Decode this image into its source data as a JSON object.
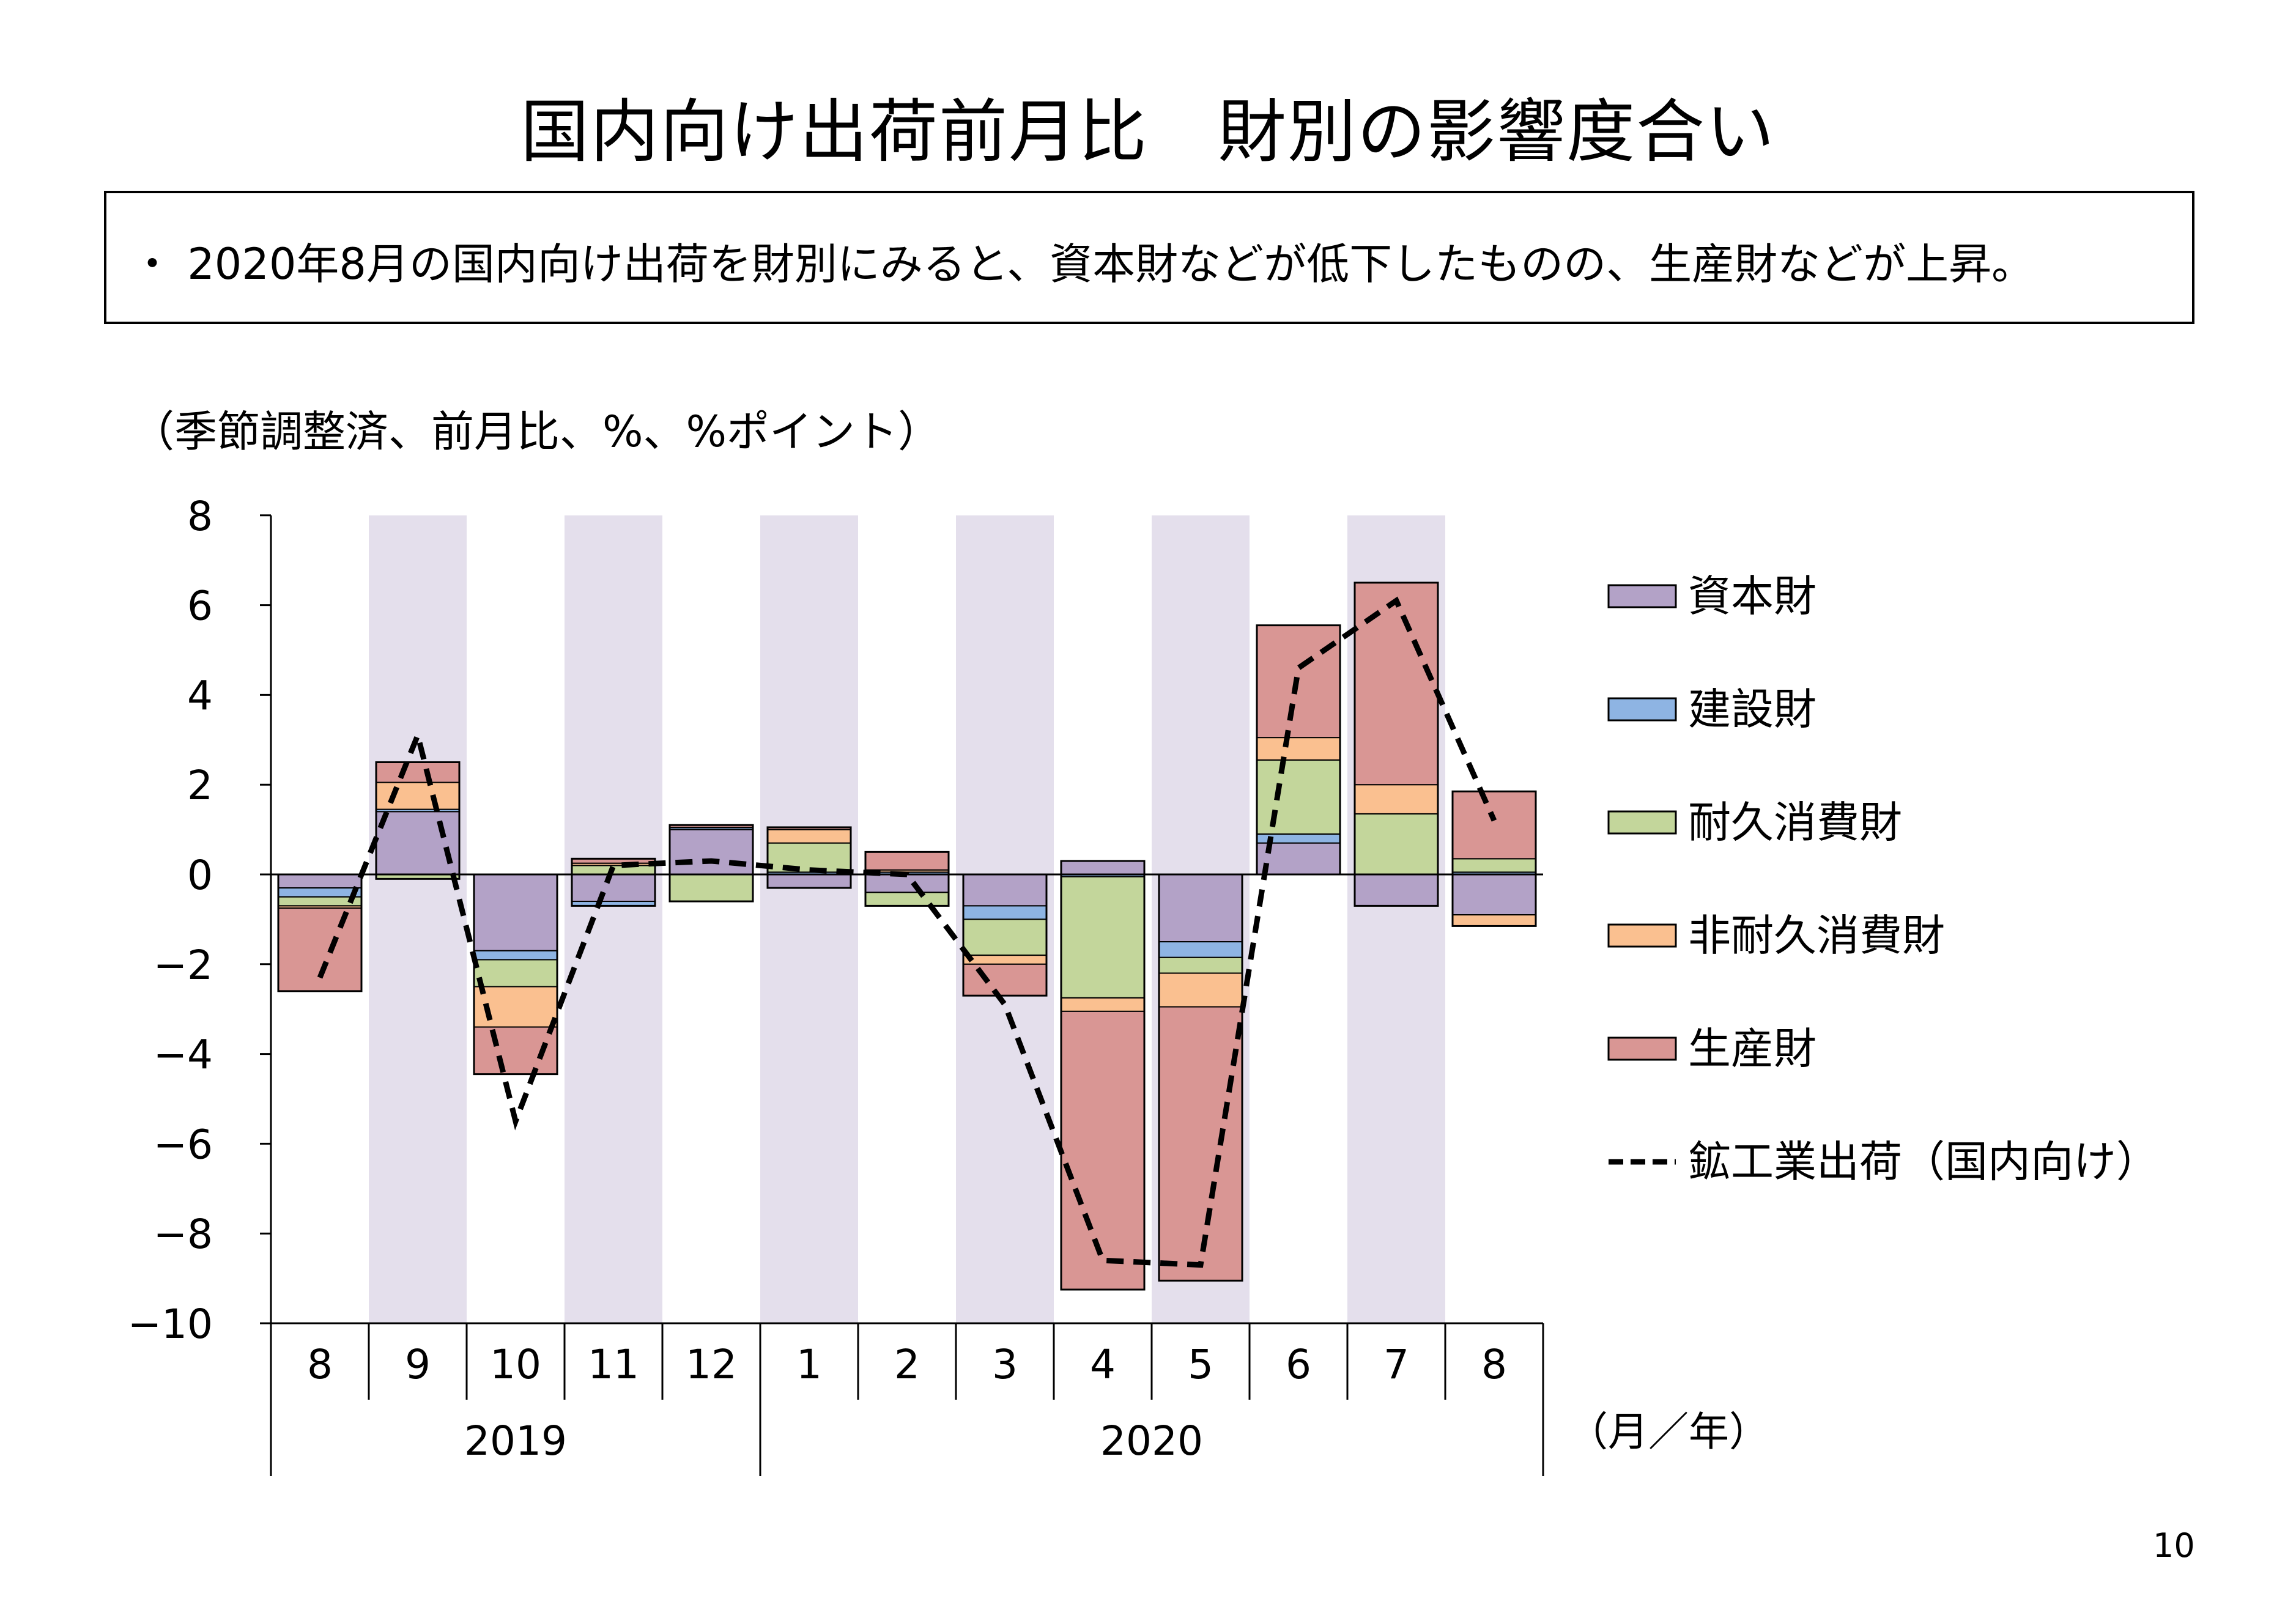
{
  "title": "国内向け出荷前月比　財別の影響度合い",
  "summary": "・ 2020年8月の国内向け出荷を財別にみると、資本財などが低下したものの、生産財などが上昇。",
  "unit_note": "（季節調整済、前月比、%、%ポイント）",
  "page_number": "10",
  "colors": {
    "capital": "#b3a2c7",
    "construction": "#8eb4e3",
    "durable": "#c3d69b",
    "nondurable": "#fac090",
    "production": "#d99694",
    "shading": "#e4dfec",
    "line": "#000000"
  },
  "chart_data": {
    "type": "bar",
    "stacked": true,
    "categories": [
      "8",
      "9",
      "10",
      "11",
      "12",
      "1",
      "2",
      "3",
      "4",
      "5",
      "6",
      "7",
      "8"
    ],
    "year_labels": [
      {
        "label": "2019",
        "from": 0,
        "to": 4
      },
      {
        "label": "2020",
        "from": 5,
        "to": 12
      }
    ],
    "x_unit_label": "（月／年）",
    "ylim": [
      -10,
      8
    ],
    "yticks": [
      "8",
      "6",
      "4",
      "2",
      "0",
      "−2",
      "−4",
      "−6",
      "−8",
      "−10"
    ],
    "ytick_values": [
      8,
      6,
      4,
      2,
      0,
      -2,
      -4,
      -6,
      -8,
      -10
    ],
    "shaded_categories": [
      1,
      3,
      5,
      7,
      9,
      11
    ],
    "series": [
      {
        "name": "資本財",
        "key": "capital",
        "values": [
          -0.3,
          1.4,
          -1.7,
          -0.6,
          1.0,
          -0.3,
          -0.4,
          -0.7,
          0.3,
          -1.5,
          0.7,
          -0.7,
          -0.9
        ]
      },
      {
        "name": "建設財",
        "key": "construction",
        "values": [
          -0.2,
          0.05,
          -0.2,
          -0.1,
          0.05,
          0.05,
          0.05,
          -0.3,
          -0.05,
          -0.35,
          0.2,
          0.0,
          0.05
        ]
      },
      {
        "name": "耐久消費財",
        "key": "durable",
        "values": [
          -0.2,
          -0.1,
          -0.6,
          0.2,
          -0.6,
          0.65,
          -0.3,
          -0.8,
          -2.7,
          -0.35,
          1.65,
          1.35,
          0.3
        ]
      },
      {
        "name": "非耐久消費財",
        "key": "nondurable",
        "values": [
          -0.05,
          0.6,
          -0.9,
          0.05,
          0.0,
          0.3,
          0.05,
          -0.2,
          -0.3,
          -0.75,
          0.5,
          0.65,
          -0.25
        ]
      },
      {
        "name": "生産財",
        "key": "production",
        "values": [
          -1.85,
          0.45,
          -1.05,
          0.1,
          0.05,
          0.05,
          0.4,
          -0.7,
          -6.2,
          -6.1,
          2.5,
          4.5,
          1.5
        ]
      }
    ],
    "line": {
      "name": "鉱工業出荷（国内向け）",
      "values": [
        -2.3,
        3.1,
        -5.5,
        0.2,
        0.3,
        0.1,
        0.0,
        -2.9,
        -8.6,
        -8.7,
        4.6,
        6.1,
        1.2
      ]
    },
    "legend_position": "right"
  }
}
